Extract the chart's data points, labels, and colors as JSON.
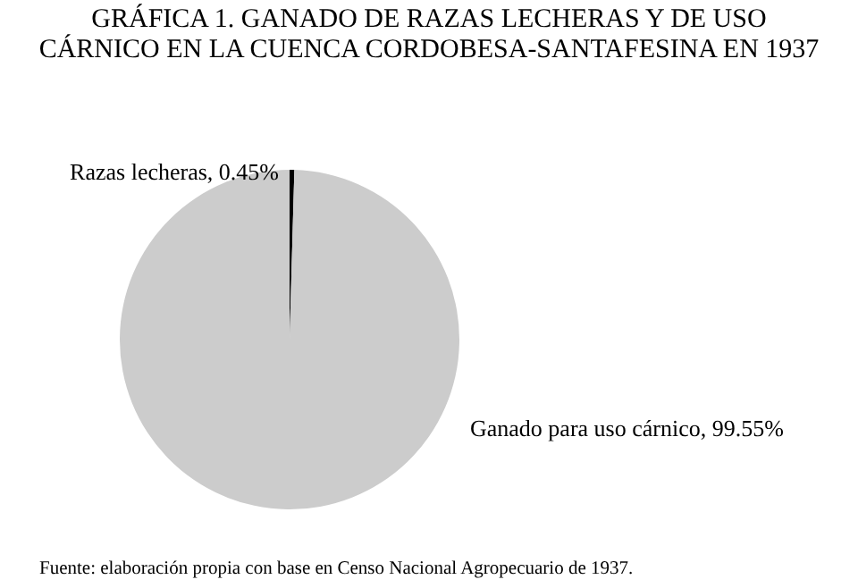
{
  "chart_data": {
    "type": "pie",
    "title": "GRÁFICA 1. GANADO DE RAZAS LECHERAS Y DE USO CÁRNICO EN LA CUENCA CORDOBESA-SANTAFESINA EN 1937",
    "categories": [
      "Razas lecheras",
      "Ganado para uso cárnico"
    ],
    "values": [
      0.45,
      99.55
    ],
    "colors": [
      "#000000",
      "#cccccc"
    ],
    "value_labels": [
      "0.45%",
      "99.55%"
    ],
    "legend": false,
    "annotations": [
      "Fuente: elaboración propia con base en Censo Nacional Agropecuario de 1937."
    ]
  }
}
